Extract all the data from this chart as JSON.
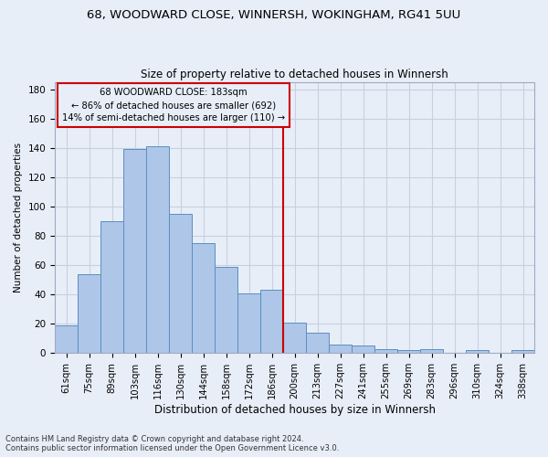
{
  "title1": "68, WOODWARD CLOSE, WINNERSH, WOKINGHAM, RG41 5UU",
  "title2": "Size of property relative to detached houses in Winnersh",
  "xlabel": "Distribution of detached houses by size in Winnersh",
  "ylabel": "Number of detached properties",
  "bar_labels": [
    "61sqm",
    "75sqm",
    "89sqm",
    "103sqm",
    "116sqm",
    "130sqm",
    "144sqm",
    "158sqm",
    "172sqm",
    "186sqm",
    "200sqm",
    "213sqm",
    "227sqm",
    "241sqm",
    "255sqm",
    "269sqm",
    "283sqm",
    "296sqm",
    "310sqm",
    "324sqm",
    "338sqm"
  ],
  "bar_values": [
    19,
    54,
    90,
    139,
    141,
    95,
    75,
    59,
    41,
    43,
    21,
    14,
    6,
    5,
    3,
    2,
    3,
    0,
    2,
    0,
    2
  ],
  "bar_color": "#aec6e8",
  "bar_edge_color": "#5a8fc0",
  "vline_x": 9.5,
  "vline_color": "#cc0000",
  "annotation_title": "68 WOODWARD CLOSE: 183sqm",
  "annotation_line2": "← 86% of detached houses are smaller (692)",
  "annotation_line3": "14% of semi-detached houses are larger (110) →",
  "annotation_box_color": "#cc0000",
  "ylim": [
    0,
    185
  ],
  "yticks": [
    0,
    20,
    40,
    60,
    80,
    100,
    120,
    140,
    160,
    180
  ],
  "footnote1": "Contains HM Land Registry data © Crown copyright and database right 2024.",
  "footnote2": "Contains public sector information licensed under the Open Government Licence v3.0.",
  "bg_color": "#e8eef8",
  "grid_color": "#c8d0e0"
}
